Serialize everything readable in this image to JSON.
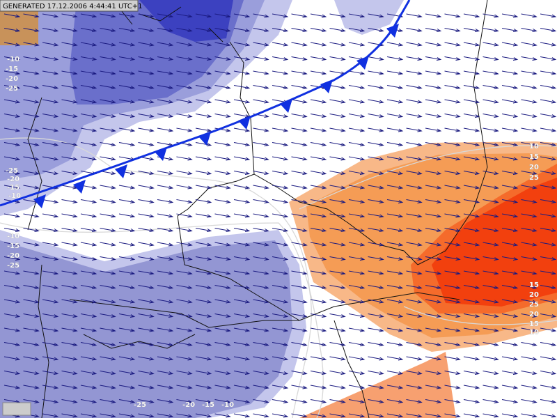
{
  "header": {
    "generated": "GENERATED 17.12.2006 4:44:41 UTC+1"
  },
  "contour_labels": [
    "-10",
    "-15",
    "-20",
    "-25",
    "-25",
    "-20",
    "-15",
    "-10",
    "-10",
    "-15",
    "-20",
    "-25",
    "10",
    "15",
    "20",
    "25",
    "15",
    "20",
    "25",
    "20",
    "15",
    "10",
    "-25",
    "-20",
    "-15",
    "-10"
  ]
}
